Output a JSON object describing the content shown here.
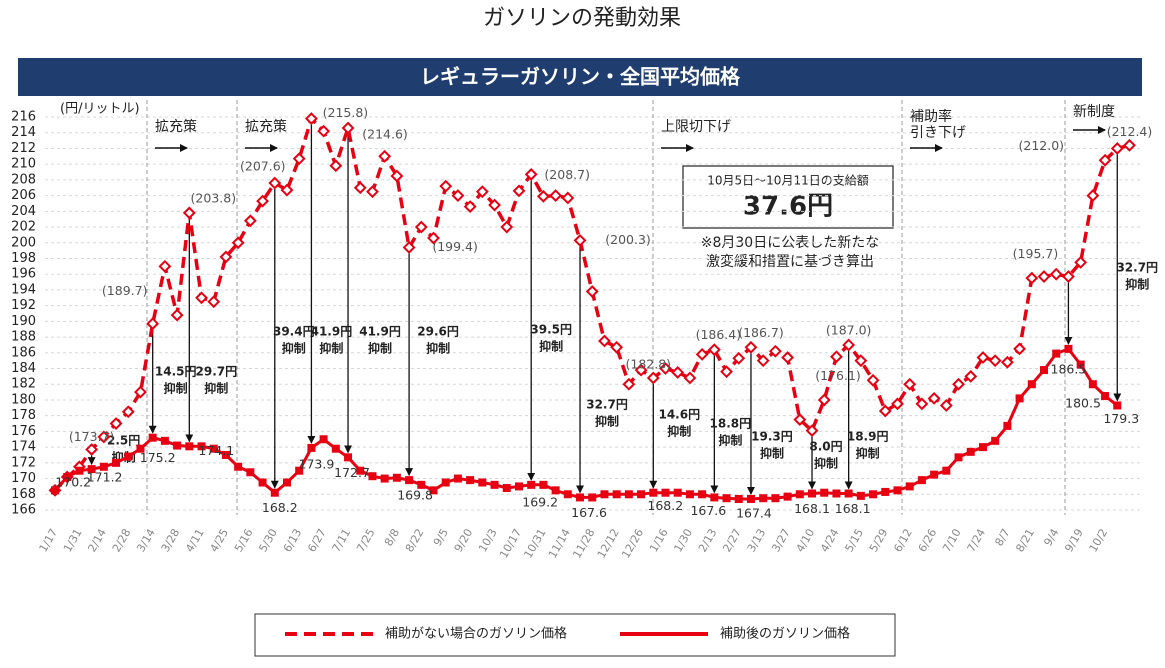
{
  "chart_data": {
    "type": "line",
    "title": "ガソリンの発動効果",
    "banner": "レギュラーガソリン・全国平均価格",
    "y_label": "(円/リットル)",
    "ylim": [
      166,
      216
    ],
    "yticks": [
      166,
      168,
      170,
      172,
      174,
      176,
      178,
      180,
      182,
      184,
      186,
      188,
      190,
      192,
      194,
      196,
      198,
      200,
      202,
      204,
      206,
      208,
      210,
      212,
      214,
      216
    ],
    "grid": true,
    "categories": [
      "1/17",
      null,
      "1/31",
      null,
      "2/14",
      null,
      "2/28",
      null,
      "3/14",
      null,
      "3/28",
      null,
      "4/11",
      null,
      "4/25",
      null,
      "5/16",
      null,
      "5/30",
      null,
      "6/13",
      null,
      "6/27",
      null,
      "7/11",
      null,
      "7/25",
      null,
      "8/8",
      null,
      "8/22",
      null,
      "9/5",
      null,
      "9/20",
      null,
      "10/3",
      null,
      "10/17",
      null,
      "10/31",
      null,
      "11/14",
      null,
      "11/28",
      null,
      "12/12",
      null,
      "12/26",
      null,
      "1/16",
      null,
      "1/30",
      null,
      "2/13",
      null,
      "2/27",
      null,
      "3/13",
      null,
      "3/27",
      null,
      "4/10",
      null,
      "4/24",
      null,
      "5/15",
      null,
      "5/29",
      null,
      "6/12",
      null,
      "6/26",
      null,
      "7/10",
      null,
      "7/24",
      null,
      "8/7",
      null,
      "8/21",
      null,
      "9/4",
      null,
      "9/19",
      null,
      "10/2",
      null,
      null
    ],
    "series": [
      {
        "name": "補助がない場合のガソリン価格",
        "color": "#e60012",
        "style": "dashed",
        "values": [
          168.5,
          170.2,
          171.5,
          173.7,
          175.3,
          177,
          178.5,
          181,
          189.7,
          197,
          190.8,
          203.8,
          193,
          192.5,
          198.2,
          200,
          202.8,
          205.3,
          207.6,
          206.7,
          210.7,
          215.8,
          214.2,
          209.8,
          214.6,
          207,
          206.5,
          211,
          208.5,
          199.4,
          202,
          200.6,
          207.2,
          206,
          204.6,
          206.5,
          204.8,
          202,
          206.6,
          208.7,
          205.9,
          206,
          205.7,
          200.3,
          193.8,
          187.5,
          186.7,
          182,
          183.8,
          182.8,
          184,
          183.5,
          182.8,
          185.8,
          186.4,
          183.6,
          185.3,
          186.7,
          185,
          186.2,
          185.4,
          177.5,
          176.1,
          180,
          185.5,
          187,
          185,
          182.5,
          178.6,
          179.5,
          182,
          179.5,
          180.2,
          179.3,
          182,
          183,
          185.4,
          185,
          184.8,
          186.5,
          195.5,
          195.7,
          196,
          195.7,
          197.5,
          206,
          210.5,
          212,
          212.4
        ],
        "value_labels": [
          null,
          null,
          null,
          "(173.7)",
          null,
          null,
          null,
          null,
          "(189.7)",
          null,
          null,
          "(203.8)",
          null,
          null,
          null,
          null,
          null,
          null,
          "(207.6)",
          null,
          null,
          "(215.8)",
          null,
          null,
          "(214.6)",
          null,
          null,
          null,
          null,
          "(199.4)",
          null,
          null,
          null,
          null,
          null,
          null,
          null,
          null,
          null,
          "(208.7)",
          null,
          null,
          null,
          "(200.3)",
          null,
          null,
          null,
          null,
          null,
          "(182.8)",
          null,
          null,
          null,
          null,
          "(186.4)",
          null,
          null,
          "(186.7)",
          null,
          null,
          null,
          null,
          "(176.1)",
          null,
          null,
          "(187.0)",
          null,
          null,
          null,
          null,
          null,
          null,
          null,
          null,
          null,
          null,
          null,
          null,
          null,
          null,
          null,
          null,
          null,
          "(195.7)",
          null,
          null,
          null,
          "(212.0)",
          "(212.4)"
        ]
      },
      {
        "name": "補助後のガソリン価格",
        "color": "#e60012",
        "style": "solid",
        "values": [
          168.5,
          170.2,
          171,
          171.2,
          171.5,
          172,
          172.8,
          173.8,
          175.2,
          174.8,
          174.2,
          174.1,
          174.1,
          173.8,
          173,
          171.5,
          170.8,
          169.5,
          168.2,
          169.5,
          171,
          173.9,
          175,
          173.8,
          172.7,
          171,
          170.3,
          170,
          170.1,
          169.8,
          169.2,
          168.5,
          169.5,
          170,
          169.8,
          169.5,
          169.2,
          168.8,
          169,
          169.2,
          169.2,
          168.5,
          168,
          167.6,
          167.6,
          168,
          168,
          168,
          168,
          168.2,
          168.2,
          168.2,
          168,
          168,
          167.6,
          167.5,
          167.4,
          167.4,
          167.5,
          167.5,
          167.7,
          168,
          168.1,
          168.2,
          168.1,
          168.1,
          167.8,
          168,
          168.3,
          168.5,
          169,
          169.8,
          170.5,
          171,
          172.7,
          173.4,
          174,
          174.8,
          176.7,
          180.2,
          182,
          183.8,
          185.9,
          186.5,
          184.5,
          182,
          180.5,
          179.3,
          null
        ],
        "value_labels": [
          null,
          "170.2",
          null,
          "171.2",
          null,
          null,
          null,
          null,
          "175.2",
          null,
          null,
          "174.1",
          null,
          null,
          null,
          null,
          null,
          null,
          "168.2",
          null,
          null,
          "173.9",
          null,
          null,
          "172.7",
          null,
          null,
          null,
          null,
          "169.8",
          null,
          null,
          null,
          null,
          null,
          null,
          null,
          null,
          null,
          "169.2",
          null,
          null,
          null,
          "167.6",
          null,
          null,
          null,
          null,
          null,
          "168.2",
          null,
          null,
          null,
          null,
          "167.6",
          null,
          null,
          "167.4",
          null,
          null,
          null,
          null,
          "168.1",
          null,
          null,
          "168.1",
          null,
          null,
          null,
          null,
          null,
          null,
          null,
          null,
          null,
          null,
          null,
          null,
          null,
          null,
          null,
          null,
          null,
          "186.5",
          null,
          null,
          "180.5",
          "179.3",
          null
        ]
      }
    ],
    "reductions": [
      {
        "amount": "2.5円",
        "note": "抑制"
      },
      {
        "amount": "14.5円",
        "note": "抑制"
      },
      {
        "amount": "29.7円",
        "note": "抑制"
      },
      {
        "amount": "39.4円",
        "note": "抑制"
      },
      {
        "amount": "41.9円",
        "note": "抑制"
      },
      {
        "amount": "41.9円",
        "note": "抑制"
      },
      {
        "amount": "29.6円",
        "note": "抑制"
      },
      {
        "amount": "39.5円",
        "note": "抑制"
      },
      {
        "amount": "32.7円",
        "note": "抑制"
      },
      {
        "amount": "14.6円",
        "note": "抑制"
      },
      {
        "amount": "18.8円",
        "note": "抑制"
      },
      {
        "amount": "19.3円",
        "note": "抑制"
      },
      {
        "amount": "8.0円",
        "note": "抑制"
      },
      {
        "amount": "18.9円",
        "note": "抑制"
      },
      {
        "amount": "32.7円",
        "note": "抑制"
      }
    ],
    "phases": [
      [
        "拡充策"
      ],
      [
        "拡充策"
      ],
      [
        "上限切下げ"
      ],
      [
        "補助率",
        "引き下げ"
      ],
      [
        "新制度"
      ]
    ],
    "info_box": {
      "heading": "10月5日～10月11日の支給額",
      "amount": "37.6円"
    },
    "notes": [
      "※8月30日に公表した新たな",
      "激変緩和措置に基づき算出"
    ]
  }
}
